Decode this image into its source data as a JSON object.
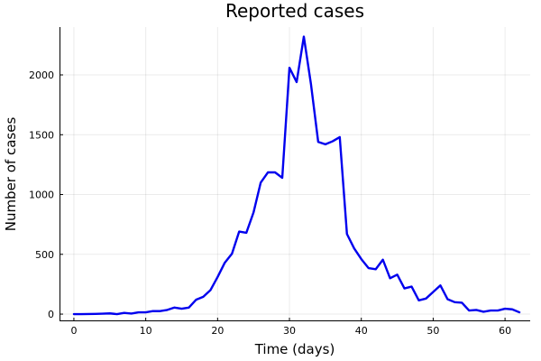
{
  "chart_data": {
    "type": "line",
    "title": "Reported cases",
    "xlabel": "Time (days)",
    "ylabel": "Number of cases",
    "xlim": [
      -2,
      63.5
    ],
    "ylim": [
      -60,
      2400
    ],
    "x_ticks": [
      0,
      10,
      20,
      30,
      40,
      50,
      60
    ],
    "y_ticks": [
      0,
      500,
      1000,
      1500,
      2000
    ],
    "grid": true,
    "legend": "none",
    "series": [
      {
        "color": "#0000ee",
        "x": [
          0,
          1,
          2,
          3,
          4,
          5,
          6,
          7,
          8,
          9,
          10,
          11,
          12,
          13,
          14,
          15,
          16,
          17,
          18,
          19,
          20,
          21,
          22,
          23,
          24,
          25,
          26,
          27,
          28,
          29,
          30,
          31,
          32,
          33,
          34,
          35,
          36,
          37,
          38,
          39,
          40,
          41,
          42,
          43,
          44,
          45,
          46,
          47,
          48,
          49,
          50,
          51,
          52,
          53,
          54,
          55,
          56,
          57,
          58,
          59,
          60,
          61,
          62
        ],
        "y": [
          0,
          0,
          1,
          2,
          4,
          6,
          0,
          10,
          5,
          15,
          15,
          25,
          25,
          35,
          55,
          45,
          55,
          120,
          145,
          200,
          310,
          430,
          505,
          690,
          680,
          850,
          1100,
          1185,
          1185,
          1140,
          2060,
          1940,
          2320,
          1920,
          1440,
          1420,
          1445,
          1480,
          670,
          550,
          460,
          385,
          375,
          455,
          300,
          330,
          215,
          230,
          115,
          130,
          185,
          240,
          125,
          100,
          95,
          30,
          35,
          20,
          30,
          30,
          45,
          40,
          15
        ]
      }
    ]
  }
}
